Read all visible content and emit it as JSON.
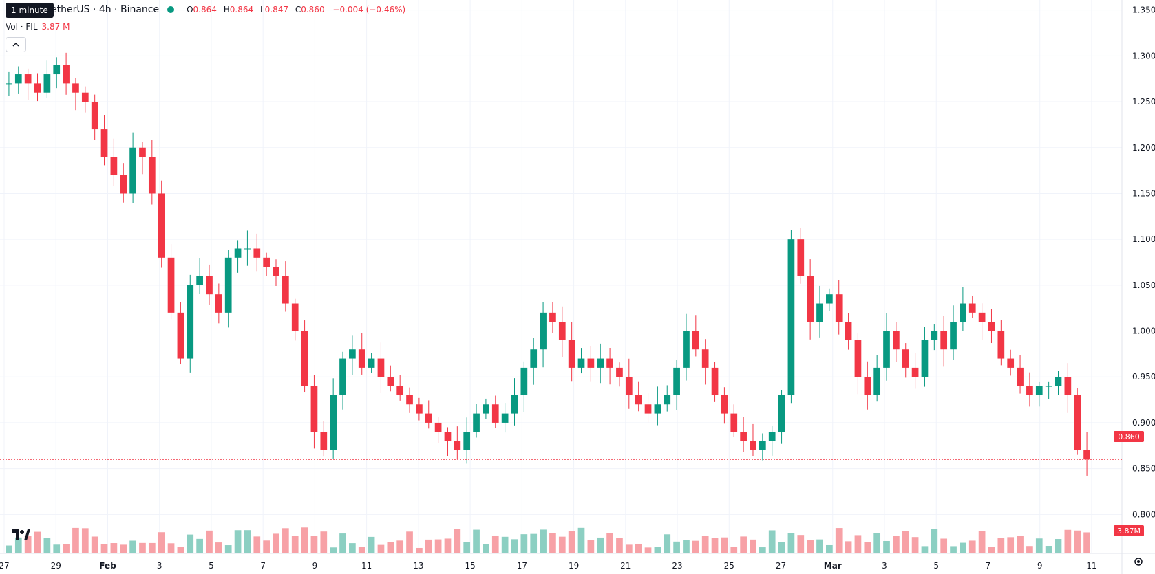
{
  "header": {
    "tooltip": "1 minute",
    "symbol_line": "FIL / TetherUS · 4h · Binance",
    "symbol_visible": "etherUS · 4h · Binance",
    "ohlc": {
      "o_label": "O",
      "o": "0.864",
      "h_label": "H",
      "h": "0.864",
      "l_label": "L",
      "l": "0.847",
      "c_label": "C",
      "c": "0.860",
      "change": "−0.004 (−0.46%)"
    },
    "volume_label": "Vol · FIL",
    "volume_value": "3.87 M"
  },
  "price_tags": {
    "last": "0.860",
    "volume": "3.87M"
  },
  "icons": {
    "collapse": "chevron-up-icon",
    "logo": "tradingview-logo",
    "settings": "gear-icon"
  },
  "colors": {
    "up": "#089981",
    "down": "#f23645",
    "up_vol": "#8ccfc2",
    "down_vol": "#f7a1a6",
    "grid": "#f0f3fa"
  },
  "chart_data": {
    "type": "candlestick",
    "title": "",
    "y_axis": {
      "labels": [
        "1.350",
        "1.300",
        "1.250",
        "1.200",
        "1.150",
        "1.100",
        "1.050",
        "1.000",
        "0.950",
        "0.900",
        "0.850",
        "0.800"
      ],
      "range": [
        0.78,
        1.355
      ]
    },
    "x_axis": {
      "labels": [
        "27",
        "29",
        "Feb",
        "3",
        "5",
        "7",
        "9",
        "11",
        "13",
        "15",
        "17",
        "19",
        "21",
        "23",
        "25",
        "27",
        "Mar",
        "3",
        "5",
        "7",
        "9",
        "11"
      ]
    },
    "last_price": 0.86,
    "closes_approx": [
      1.27,
      1.28,
      1.27,
      1.26,
      1.28,
      1.29,
      1.27,
      1.26,
      1.25,
      1.22,
      1.19,
      1.17,
      1.15,
      1.2,
      1.19,
      1.15,
      1.08,
      1.02,
      0.97,
      1.05,
      1.06,
      1.04,
      1.02,
      1.08,
      1.09,
      1.09,
      1.08,
      1.07,
      1.06,
      1.03,
      1.0,
      0.94,
      0.89,
      0.87,
      0.93,
      0.97,
      0.98,
      0.96,
      0.97,
      0.95,
      0.94,
      0.93,
      0.92,
      0.91,
      0.9,
      0.89,
      0.88,
      0.87,
      0.89,
      0.91,
      0.92,
      0.9,
      0.91,
      0.93,
      0.96,
      0.98,
      1.02,
      1.01,
      0.99,
      0.96,
      0.97,
      0.96,
      0.97,
      0.96,
      0.95,
      0.93,
      0.92,
      0.91,
      0.92,
      0.93,
      0.96,
      1.0,
      0.98,
      0.96,
      0.93,
      0.91,
      0.89,
      0.88,
      0.87,
      0.88,
      0.89,
      0.93,
      1.1,
      1.06,
      1.01,
      1.03,
      1.04,
      1.01,
      0.99,
      0.95,
      0.93,
      0.96,
      1.0,
      0.98,
      0.96,
      0.95,
      0.99,
      1.0,
      0.98,
      1.01,
      1.03,
      1.02,
      1.01,
      1.0,
      0.97,
      0.96,
      0.94,
      0.93,
      0.94,
      0.94,
      0.95,
      0.93,
      0.87,
      0.86
    ],
    "volume_unit": "M"
  }
}
